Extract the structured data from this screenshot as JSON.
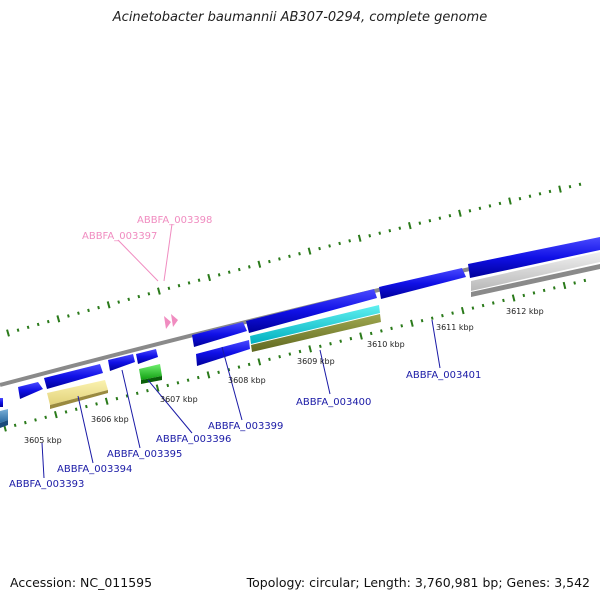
{
  "title": "Acinetobacter baumannii AB307-0294, complete genome",
  "footer": {
    "accession": "Accession: NC_011595",
    "summary": "Topology: circular; Length: 3,760,981 bp; Genes: 3,542"
  },
  "colors": {
    "gene_label": "#1a1aa6",
    "rna_label": "#f08cc0",
    "backbone": "#8a8a8a",
    "tick": "#2a7a1a",
    "cds": "#1010e0"
  },
  "scale_labels": [
    "3605 kbp",
    "3606 kbp",
    "3607 kbp",
    "3608 kbp",
    "3609 kbp",
    "3610 kbp",
    "3611 kbp",
    "3612 kbp"
  ],
  "gene_labels": {
    "ABBFA_003393": "ABBFA_003393",
    "ABBFA_003394": "ABBFA_003394",
    "ABBFA_003395": "ABBFA_003395",
    "ABBFA_003396": "ABBFA_003396",
    "ABBFA_003397": "ABBFA_003397",
    "ABBFA_003398": "ABBFA_003398",
    "ABBFA_003399": "ABBFA_003399",
    "ABBFA_003400": "ABBFA_003400",
    "ABBFA_003401": "ABBFA_003401"
  }
}
